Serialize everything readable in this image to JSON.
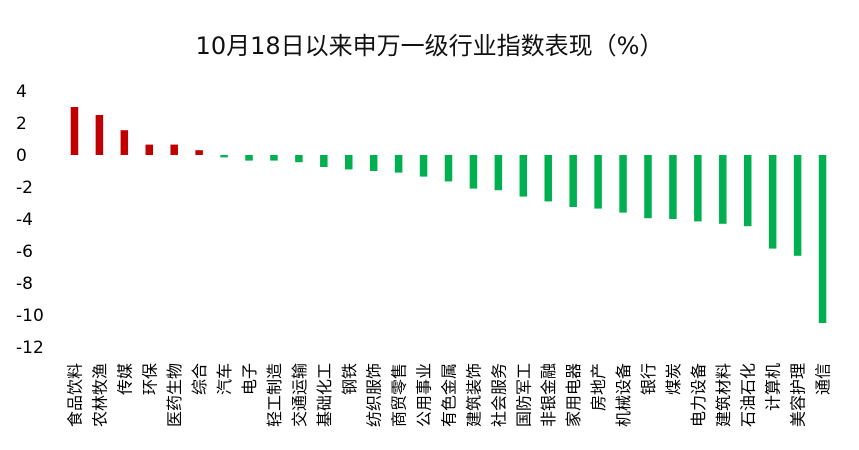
{
  "chart_data": {
    "type": "bar",
    "title": "10月18日以来申万一级行业指数表现（%）",
    "xlabel": "",
    "ylabel": "",
    "ylim": [
      -12,
      4
    ],
    "yticks": [
      4,
      2,
      0,
      -2,
      -4,
      -6,
      -8,
      -10,
      -12
    ],
    "grid": false,
    "categories": [
      "食品饮料",
      "农林牧渔",
      "传媒",
      "环保",
      "医药生物",
      "综合",
      "汽车",
      "电子",
      "轻工制造",
      "交通运输",
      "基础化工",
      "钢铁",
      "纺织服饰",
      "商贸零售",
      "公用事业",
      "有色金属",
      "建筑装饰",
      "社会服务",
      "国防军工",
      "非银金融",
      "家用电器",
      "房地产",
      "机械设备",
      "银行",
      "煤炭",
      "电力设备",
      "建筑材料",
      "石油石化",
      "计算机",
      "美容护理",
      "通信"
    ],
    "values": [
      3.0,
      2.5,
      1.55,
      0.65,
      0.65,
      0.3,
      -0.15,
      -0.35,
      -0.35,
      -0.45,
      -0.75,
      -0.9,
      -1.0,
      -1.1,
      -1.35,
      -1.65,
      -2.1,
      -2.2,
      -2.6,
      -2.9,
      -3.25,
      -3.35,
      -3.6,
      -3.95,
      -4.0,
      -4.15,
      -4.3,
      -4.45,
      -5.85,
      -6.3,
      -10.5
    ],
    "colors": {
      "positive": "#c00000",
      "negative": "#00b050"
    }
  }
}
